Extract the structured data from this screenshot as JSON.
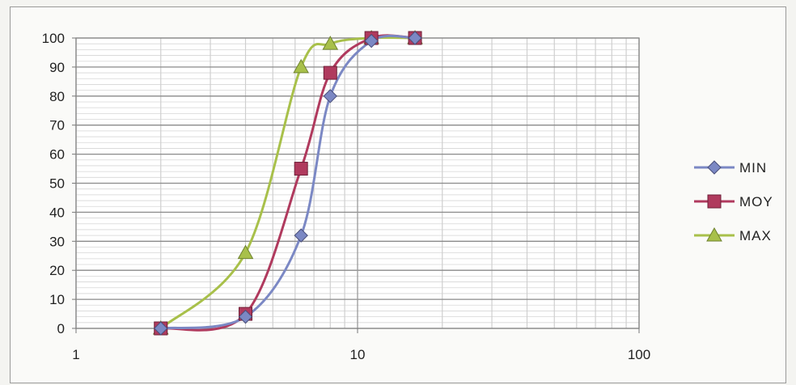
{
  "chart_data": {
    "type": "line",
    "title": "",
    "xlabel": "",
    "ylabel": "",
    "x_scale": "log",
    "xlim": [
      1,
      100
    ],
    "ylim": [
      0,
      100
    ],
    "x_ticks": [
      "1",
      "10",
      "100"
    ],
    "y_ticks": [
      "0",
      "10",
      "20",
      "30",
      "40",
      "50",
      "60",
      "70",
      "80",
      "90",
      "100"
    ],
    "grid": true,
    "legend_position": "right",
    "series": [
      {
        "name": "MIN",
        "color": "#7b88c4",
        "marker": "diamond",
        "x": [
          2,
          4,
          6.3,
          8,
          11.2,
          16
        ],
        "y": [
          0,
          4,
          32,
          80,
          99,
          100
        ]
      },
      {
        "name": "MOY",
        "color": "#b03a5e",
        "marker": "square",
        "x": [
          2,
          4,
          6.3,
          8,
          11.2,
          16
        ],
        "y": [
          0,
          5,
          55,
          88,
          100,
          100
        ]
      },
      {
        "name": "MAX",
        "color": "#a8c04a",
        "marker": "triangle",
        "x": [
          2,
          4,
          6.3,
          8,
          11.2,
          16
        ],
        "y": [
          0,
          26,
          90,
          98,
          100,
          100
        ]
      }
    ]
  }
}
